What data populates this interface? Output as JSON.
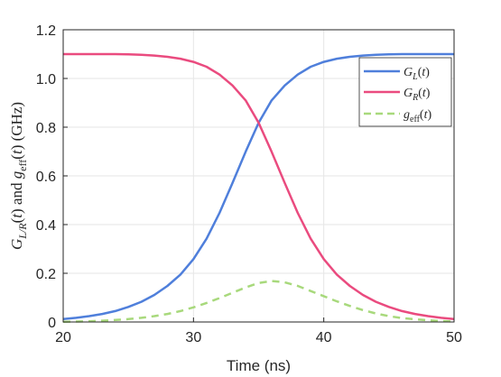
{
  "chart_data": {
    "type": "line",
    "xlabel": "Time (ns)",
    "ylabel": "G_{L/R}(t) and g_eff(t) (GHz)",
    "xlim": [
      20,
      50
    ],
    "ylim": [
      0,
      1.2
    ],
    "xticks": [
      "20",
      "30",
      "40",
      "50"
    ],
    "yticks": [
      "0",
      "0.2",
      "0.4",
      "0.6",
      "0.8",
      "1.0",
      "1.2"
    ],
    "grid": true,
    "legend_position": "top-right",
    "x": [
      20,
      21,
      22,
      23,
      24,
      25,
      26,
      27,
      28,
      29,
      30,
      31,
      32,
      33,
      34,
      35,
      36,
      37,
      38,
      39,
      40,
      41,
      42,
      43,
      44,
      45,
      46,
      47,
      48,
      49,
      50
    ],
    "series": [
      {
        "name": "G_L(t)",
        "color": "#4f7fdb",
        "dash": "solid",
        "values": [
          0.012,
          0.017,
          0.024,
          0.033,
          0.045,
          0.062,
          0.083,
          0.111,
          0.148,
          0.195,
          0.258,
          0.342,
          0.448,
          0.571,
          0.699,
          0.818,
          0.91,
          0.971,
          1.016,
          1.048,
          1.068,
          1.081,
          1.089,
          1.094,
          1.097,
          1.099,
          1.1,
          1.1,
          1.1,
          1.1,
          1.1
        ]
      },
      {
        "name": "G_R(t)",
        "color": "#ea4b7f",
        "dash": "solid",
        "values": [
          1.1,
          1.1,
          1.1,
          1.1,
          1.1,
          1.099,
          1.097,
          1.094,
          1.089,
          1.081,
          1.068,
          1.048,
          1.016,
          0.971,
          0.91,
          0.818,
          0.699,
          0.571,
          0.448,
          0.342,
          0.258,
          0.195,
          0.148,
          0.111,
          0.083,
          0.062,
          0.045,
          0.033,
          0.024,
          0.017,
          0.012
        ]
      },
      {
        "name": "g_eff(t)",
        "color": "#a8d97c",
        "dash": "dashed",
        "values": [
          0.001,
          0.002,
          0.003,
          0.005,
          0.008,
          0.012,
          0.017,
          0.024,
          0.033,
          0.045,
          0.06,
          0.078,
          0.098,
          0.12,
          0.142,
          0.16,
          0.168,
          0.163,
          0.148,
          0.127,
          0.106,
          0.085,
          0.066,
          0.049,
          0.035,
          0.024,
          0.016,
          0.011,
          0.007,
          0.004,
          0.002
        ]
      }
    ]
  }
}
